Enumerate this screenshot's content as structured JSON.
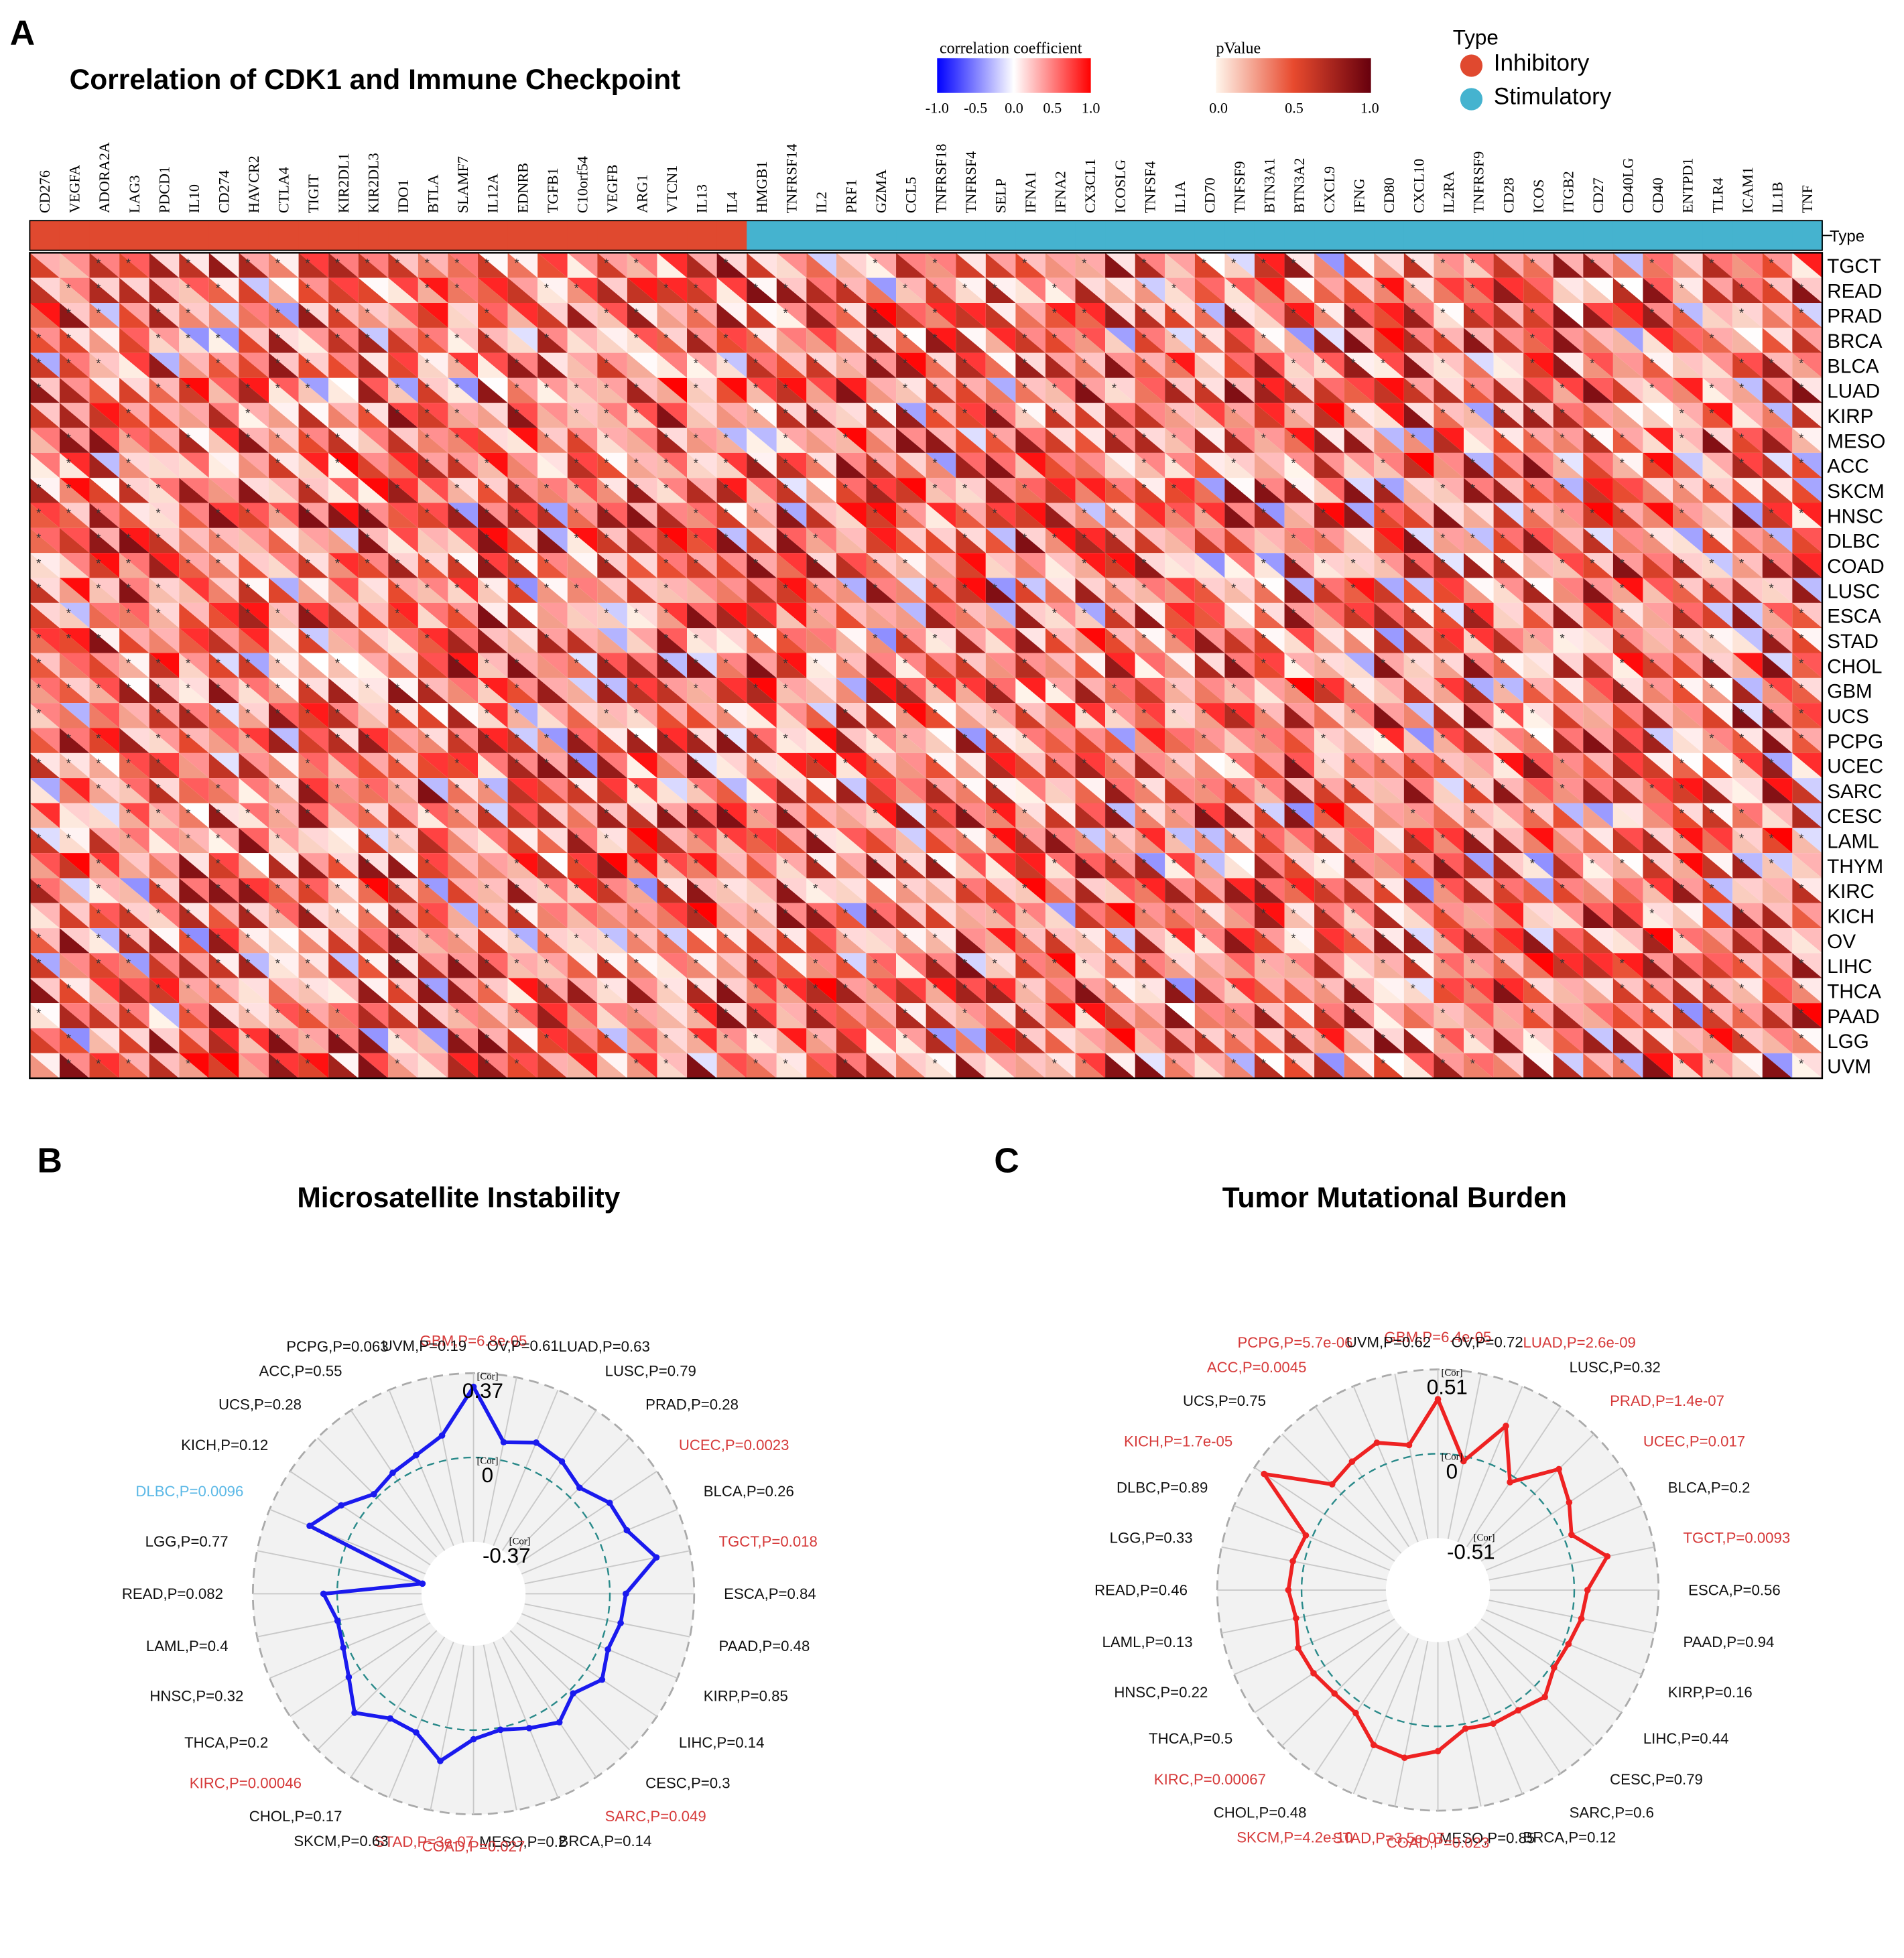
{
  "panels": {
    "a": "A",
    "b": "B",
    "c": "C"
  },
  "heatmap": {
    "title": "Correlation of CDK1 and Immune Checkpoint",
    "type_header": "Type",
    "legend": {
      "corr_title": "correlation coefficient",
      "corr_ticks": [
        "-1.0",
        "-0.5",
        "0.0",
        "0.5",
        "1.0"
      ],
      "p_title": "pValue",
      "p_ticks": [
        "0.0",
        "0.5",
        "1.0"
      ]
    },
    "type_legend": {
      "title": "Type",
      "inhibitory": "Inhibitory",
      "stimulatory": "Stimulatory",
      "inhibitory_color": "#e0492f",
      "stimulatory_color": "#45b3cf"
    },
    "star": "*"
  },
  "chart_data": [
    {
      "type": "heatmap",
      "title": "Correlation of CDK1 and Immune Checkpoint",
      "columns": [
        "CD276",
        "VEGFA",
        "ADORA2A",
        "LAG3",
        "PDCD1",
        "IL10",
        "CD274",
        "HAVCR2",
        "CTLA4",
        "TIGIT",
        "KIR2DL1",
        "KIR2DL3",
        "IDO1",
        "BTLA",
        "SLAMF7",
        "IL12A",
        "EDNRB",
        "TGFB1",
        "C10orf54",
        "VEGFB",
        "ARG1",
        "VTCN1",
        "IL13",
        "IL4",
        "HMGB1",
        "TNFRSF14",
        "IL2",
        "PRF1",
        "GZMA",
        "CCL5",
        "TNFRSF18",
        "TNFRSF4",
        "SELP",
        "IFNA1",
        "IFNA2",
        "CX3CL1",
        "ICOSLG",
        "TNFSF4",
        "IL1A",
        "CD70",
        "TNFSF9",
        "BTN3A1",
        "BTN3A2",
        "CXCL9",
        "IFNG",
        "CD80",
        "CXCL10",
        "IL2RA",
        "TNFRSF9",
        "CD28",
        "ICOS",
        "ITGB2",
        "CD27",
        "CD40LG",
        "CD40",
        "ENTPD1",
        "TLR4",
        "ICAM1",
        "IL1B",
        "TNF"
      ],
      "column_types": [
        "Inhibitory",
        "Inhibitory",
        "Inhibitory",
        "Inhibitory",
        "Inhibitory",
        "Inhibitory",
        "Inhibitory",
        "Inhibitory",
        "Inhibitory",
        "Inhibitory",
        "Inhibitory",
        "Inhibitory",
        "Inhibitory",
        "Inhibitory",
        "Inhibitory",
        "Inhibitory",
        "Inhibitory",
        "Inhibitory",
        "Inhibitory",
        "Inhibitory",
        "Inhibitory",
        "Inhibitory",
        "Inhibitory",
        "Inhibitory",
        "Stimulatory",
        "Stimulatory",
        "Stimulatory",
        "Stimulatory",
        "Stimulatory",
        "Stimulatory",
        "Stimulatory",
        "Stimulatory",
        "Stimulatory",
        "Stimulatory",
        "Stimulatory",
        "Stimulatory",
        "Stimulatory",
        "Stimulatory",
        "Stimulatory",
        "Stimulatory",
        "Stimulatory",
        "Stimulatory",
        "Stimulatory",
        "Stimulatory",
        "Stimulatory",
        "Stimulatory",
        "Stimulatory",
        "Stimulatory",
        "Stimulatory",
        "Stimulatory",
        "Stimulatory",
        "Stimulatory",
        "Stimulatory",
        "Stimulatory",
        "Stimulatory",
        "Stimulatory",
        "Stimulatory",
        "Stimulatory",
        "Stimulatory",
        "Stimulatory"
      ],
      "rows": [
        "TGCT",
        "READ",
        "PRAD",
        "BRCA",
        "BLCA",
        "LUAD",
        "KIRP",
        "MESO",
        "ACC",
        "SKCM",
        "HNSC",
        "DLBC",
        "COAD",
        "LUSC",
        "ESCA",
        "STAD",
        "CHOL",
        "GBM",
        "UCS",
        "PCPG",
        "UCEC",
        "SARC",
        "CESC",
        "LAML",
        "THYM",
        "KIRC",
        "KICH",
        "OV",
        "LIHC",
        "THCA",
        "PAAD",
        "LGG",
        "UVM"
      ],
      "color_scale": {
        "low": "#0000ff",
        "mid": "#ffffff",
        "high": "#ff0000",
        "range": [
          -1,
          1
        ]
      },
      "p_color_scale": {
        "low": "#fff5eb",
        "mid": "#e84a2e",
        "high": "#67000d",
        "range": [
          0,
          1
        ]
      }
    },
    {
      "type": "radar",
      "title": "Microsatellite Instability",
      "axis_label": "[Cor]",
      "rmin": -0.37,
      "rmax": 0.37,
      "ticks": [
        "0.37",
        "0",
        "-0.37"
      ],
      "line_color": "#1a1aee",
      "labels": [
        "GBM,P=6.8e-05",
        "OV,P=0.61",
        "LUAD,P=0.63",
        "LUSC,P=0.79",
        "PRAD,P=0.28",
        "UCEC,P=0.0023",
        "BLCA,P=0.26",
        "TGCT,P=0.018",
        "ESCA,P=0.84",
        "PAAD,P=0.48",
        "KIRP,P=0.85",
        "LIHC,P=0.14",
        "CESC,P=0.3",
        "SARC,P=0.049",
        "BRCA,P=0.14",
        "MESO,P=0.2",
        "COAD,P=0.027",
        "STAD,P=3e-07",
        "SKCM,P=0.63",
        "CHOL,P=0.17",
        "KIRC,P=0.00046",
        "THCA,P=0.2",
        "HNSC,P=0.32",
        "LAML,P=0.4",
        "READ,P=0.082",
        "LGG,P=0.77",
        "DLBC,P=0.0096",
        "KICH,P=0.12",
        "UCS,P=0.28",
        "ACC,P=0.55",
        "PCPG,P=0.063",
        "UVM,P=0.19"
      ],
      "label_colors": [
        "#d63a3a",
        "#111111",
        "#111111",
        "#111111",
        "#111111",
        "#d63a3a",
        "#111111",
        "#d63a3a",
        "#111111",
        "#111111",
        "#111111",
        "#111111",
        "#111111",
        "#d63a3a",
        "#111111",
        "#111111",
        "#d63a3a",
        "#d63a3a",
        "#111111",
        "#111111",
        "#d63a3a",
        "#111111",
        "#111111",
        "#111111",
        "#111111",
        "#111111",
        "#5bb8e6",
        "#111111",
        "#111111",
        "#111111",
        "#111111",
        "#111111"
      ],
      "values": [
        0.31,
        0.08,
        0.12,
        0.1,
        0.06,
        0.12,
        0.13,
        0.22,
        0.07,
        0.06,
        0.04,
        0.08,
        0.02,
        0.08,
        0.04,
        0.01,
        0.04,
        0.15,
        0.06,
        0.06,
        0.14,
        0.06,
        0.02,
        0.01,
        0.06,
        -0.37,
        0.18,
        0.1,
        0.02,
        0.04,
        0.06,
        0.11
      ]
    },
    {
      "type": "radar",
      "title": "Tumor Mutational Burden",
      "axis_label": "[Cor]",
      "rmin": -0.51,
      "rmax": 0.51,
      "ticks": [
        "0.51",
        "0",
        "-0.51"
      ],
      "line_color": "#ee2222",
      "labels": [
        "GBM,P=6.4e-05",
        "OV,P=0.72",
        "LUAD,P=2.6e-09",
        "LUSC,P=0.32",
        "PRAD,P=1.4e-07",
        "UCEC,P=0.017",
        "BLCA,P=0.2",
        "TGCT,P=0.0093",
        "ESCA,P=0.56",
        "PAAD,P=0.94",
        "KIRP,P=0.16",
        "LIHC,P=0.44",
        "CESC,P=0.79",
        "SARC,P=0.6",
        "BRCA,P=0.12",
        "MESO,P=0.85",
        "COAD,P=0.023",
        "STAD,P=3.5e-07",
        "SKCM,P=4.2e-10",
        "CHOL,P=0.48",
        "KIRC,P=0.00067",
        "THCA,P=0.5",
        "HNSC,P=0.22",
        "LAML,P=0.13",
        "READ,P=0.46",
        "LGG,P=0.33",
        "DLBC,P=0.89",
        "KICH,P=1.7e-05",
        "UCS,P=0.75",
        "ACC,P=0.0045",
        "PCPG,P=5.7e-06",
        "UVM,P=0.62"
      ],
      "label_colors": [
        "#d63a3a",
        "#111111",
        "#d63a3a",
        "#111111",
        "#d63a3a",
        "#d63a3a",
        "#111111",
        "#d63a3a",
        "#111111",
        "#111111",
        "#111111",
        "#111111",
        "#111111",
        "#111111",
        "#111111",
        "#111111",
        "#d63a3a",
        "#d63a3a",
        "#d63a3a",
        "#111111",
        "#d63a3a",
        "#111111",
        "#111111",
        "#111111",
        "#111111",
        "#111111",
        "#111111",
        "#d63a3a",
        "#111111",
        "#d63a3a",
        "#d63a3a",
        "#111111"
      ],
      "values": [
        0.33,
        -0.03,
        0.25,
        -0.04,
        0.21,
        0.13,
        0.05,
        0.22,
        0.08,
        0.06,
        0.03,
        0.02,
        0.09,
        0.05,
        0.05,
        0.03,
        0.15,
        0.21,
        0.19,
        0.07,
        0.06,
        0.08,
        0.09,
        0.05,
        0.08,
        0.07,
        0.04,
        0.44,
        0.08,
        0.11,
        0.14,
        0.07
      ]
    }
  ]
}
